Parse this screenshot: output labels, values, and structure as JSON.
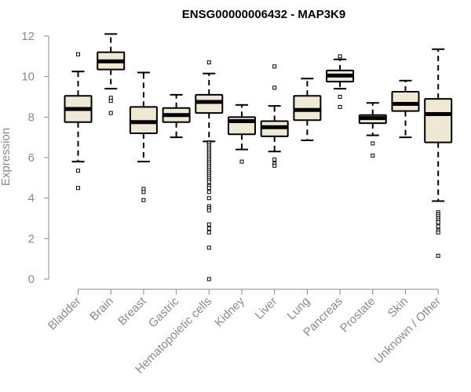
{
  "chart_data": {
    "type": "boxplot",
    "title": "ENSG00000006432 - MAP3K9",
    "ylabel": "Expression",
    "xlabel": "",
    "ylim": [
      0,
      12
    ],
    "yticks": [
      0,
      2,
      4,
      6,
      8,
      10,
      12
    ],
    "grid": false,
    "legend": "none",
    "colors": {
      "box_fill": "#efe9d4",
      "box_stroke": "#000000",
      "median": "#000000",
      "axis": "#8a8a8a",
      "title": "#000000"
    },
    "categories": [
      "Bladder",
      "Brain",
      "Breast",
      "Gastric",
      "Hematopoietic cells",
      "Kidney",
      "Liver",
      "Lung",
      "Pancreas",
      "Prostate",
      "Skin",
      "Unknown / Other"
    ],
    "boxes": [
      {
        "category": "Bladder",
        "whisker_low": 5.8,
        "q1": 7.75,
        "median": 8.4,
        "q3": 9.05,
        "whisker_high": 10.25,
        "outliers": [
          11.1,
          5.35,
          4.5
        ]
      },
      {
        "category": "Brain",
        "whisker_low": 9.4,
        "q1": 10.35,
        "median": 10.75,
        "q3": 11.2,
        "whisker_high": 12.1,
        "outliers": [
          8.95,
          8.8,
          8.2
        ]
      },
      {
        "category": "Breast",
        "whisker_low": 5.8,
        "q1": 7.2,
        "median": 7.75,
        "q3": 8.5,
        "whisker_high": 10.2,
        "outliers": [
          4.45,
          4.3,
          3.9
        ]
      },
      {
        "category": "Gastric",
        "whisker_low": 7.0,
        "q1": 7.75,
        "median": 8.1,
        "q3": 8.45,
        "whisker_high": 9.1,
        "outliers": []
      },
      {
        "category": "Hematopoietic cells",
        "whisker_low": 6.8,
        "q1": 8.2,
        "median": 8.75,
        "q3": 9.1,
        "whisker_high": 10.15,
        "outliers": [
          10.7,
          6.75,
          6.7,
          6.6,
          6.5,
          6.4,
          6.3,
          6.2,
          6.1,
          6.0,
          5.9,
          5.8,
          5.7,
          5.6,
          5.5,
          5.4,
          5.3,
          5.2,
          5.1,
          5.0,
          4.9,
          4.8,
          4.6,
          4.5,
          4.3,
          4.0,
          3.6,
          3.5,
          3.4,
          2.7,
          2.5,
          2.3,
          1.55,
          0.0
        ]
      },
      {
        "category": "Kidney",
        "whisker_low": 6.4,
        "q1": 7.15,
        "median": 7.8,
        "q3": 8.0,
        "whisker_high": 8.6,
        "outliers": [
          5.8
        ]
      },
      {
        "category": "Liver",
        "whisker_low": 6.3,
        "q1": 7.05,
        "median": 7.5,
        "q3": 7.8,
        "whisker_high": 8.55,
        "outliers": [
          10.5,
          9.45,
          5.9,
          5.7,
          5.6
        ]
      },
      {
        "category": "Lung",
        "whisker_low": 6.85,
        "q1": 7.85,
        "median": 8.35,
        "q3": 9.05,
        "whisker_high": 9.9,
        "outliers": []
      },
      {
        "category": "Pancreas",
        "whisker_low": 9.4,
        "q1": 9.75,
        "median": 10.05,
        "q3": 10.3,
        "whisker_high": 10.85,
        "outliers": [
          11.0,
          9.0,
          8.5
        ]
      },
      {
        "category": "Prostate",
        "whisker_low": 7.1,
        "q1": 7.7,
        "median": 7.95,
        "q3": 8.1,
        "whisker_high": 8.7,
        "outliers": [
          6.7,
          6.1
        ]
      },
      {
        "category": "Skin",
        "whisker_low": 7.0,
        "q1": 8.3,
        "median": 8.65,
        "q3": 9.25,
        "whisker_high": 9.8,
        "outliers": []
      },
      {
        "category": "Unknown / Other",
        "whisker_low": 3.85,
        "q1": 6.75,
        "median": 8.15,
        "q3": 8.9,
        "whisker_high": 11.35,
        "outliers": [
          3.3,
          3.2,
          3.1,
          3.0,
          2.9,
          2.8,
          2.6,
          2.4,
          2.3,
          1.15
        ]
      }
    ]
  }
}
